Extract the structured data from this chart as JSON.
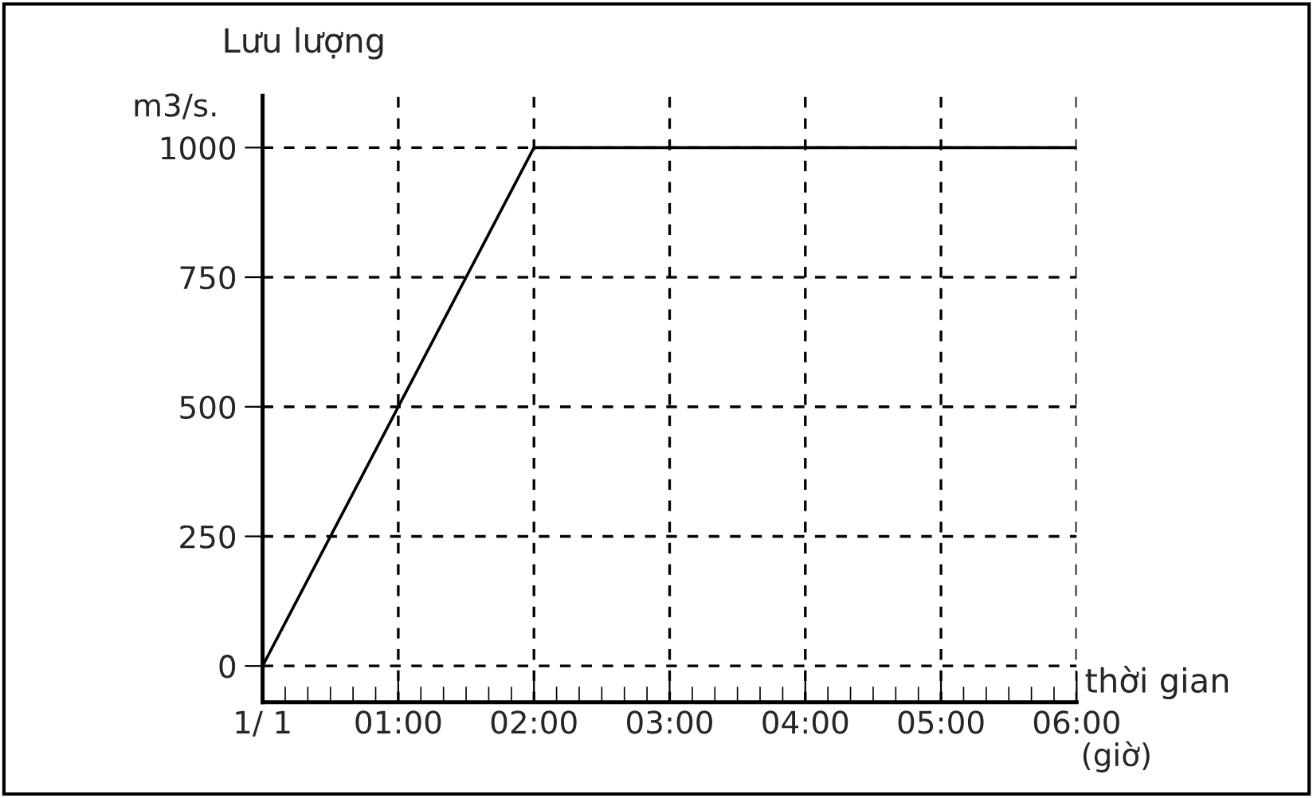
{
  "chart_data": {
    "type": "line",
    "ylabel": "Lưu lượng",
    "xlabel": "thời gian",
    "annotations": [
      "m3/s.",
      "(giờ)"
    ],
    "x": [
      0,
      2,
      6
    ],
    "series": [
      {
        "color": "#000000",
        "values": [
          0,
          1000,
          1000
        ]
      }
    ],
    "xlim": [
      0,
      6
    ],
    "xticks": [
      {
        "value": 0,
        "label": "1/ 1"
      },
      {
        "value": 1,
        "label": "01:00"
      },
      {
        "value": 2,
        "label": "02:00"
      },
      {
        "value": 3,
        "label": "03:00"
      },
      {
        "value": 4,
        "label": "04:00"
      },
      {
        "value": 5,
        "label": "05:00"
      },
      {
        "value": 6,
        "label": "06:00"
      }
    ],
    "ylim": [
      -70,
      1100
    ],
    "yticks": [
      0,
      250,
      500,
      750,
      1000
    ],
    "grid": true,
    "legend": false,
    "marker": "none",
    "line_style": "solid"
  }
}
